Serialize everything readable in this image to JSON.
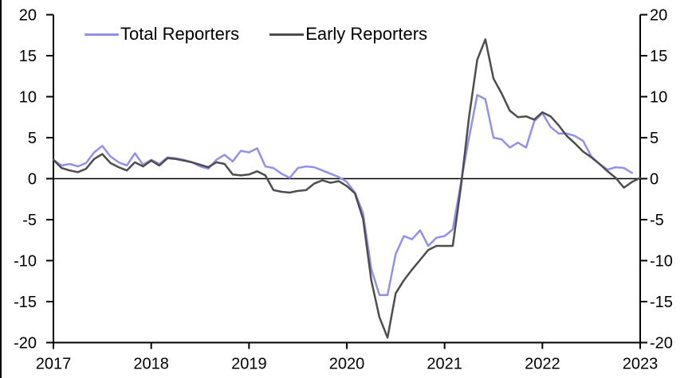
{
  "chart_data": {
    "type": "line",
    "title": "",
    "xlabel": "",
    "ylabel": "",
    "x_start_year": 2017,
    "points_per_year": 12,
    "x_tick_labels": [
      "2017",
      "2018",
      "2019",
      "2020",
      "2021",
      "2022",
      "2023"
    ],
    "y_ticks": [
      20,
      15,
      10,
      5,
      0,
      -5,
      -10,
      -15,
      -20
    ],
    "ylim": [
      -20,
      20
    ],
    "grid": false,
    "zero_line": true,
    "legend_position": "top",
    "axis_color": "#000000",
    "series": [
      {
        "name": "Total Reporters",
        "color": "#9191e9",
        "values": [
          2.3,
          1.6,
          1.8,
          1.5,
          1.9,
          3.2,
          4.0,
          2.7,
          2.0,
          1.6,
          3.1,
          1.7,
          2.3,
          1.8,
          2.6,
          2.5,
          2.3,
          2.0,
          1.5,
          1.2,
          2.3,
          2.9,
          2.1,
          3.4,
          3.2,
          3.7,
          1.5,
          1.3,
          0.6,
          0.1,
          1.3,
          1.5,
          1.4,
          1.0,
          0.6,
          0.2,
          -0.4,
          -1.7,
          -4.2,
          -11.0,
          -14.2,
          -14.2,
          -9.2,
          -7.0,
          -7.4,
          -6.3,
          -8.2,
          -7.2,
          -7.0,
          -6.2,
          -0.5,
          5.0,
          10.2,
          9.7,
          5.0,
          4.8,
          3.8,
          4.4,
          3.8,
          7.0,
          8.0,
          6.3,
          5.5,
          5.5,
          5.2,
          4.6,
          2.7,
          1.8,
          1.1,
          1.4,
          1.3,
          0.7,
          null
        ]
      },
      {
        "name": "Early Reporters",
        "color": "#4d4d4d",
        "values": [
          2.3,
          1.3,
          1.0,
          0.8,
          1.2,
          2.4,
          3.0,
          1.9,
          1.4,
          1.0,
          2.0,
          1.5,
          2.2,
          1.6,
          2.5,
          2.4,
          2.2,
          2.0,
          1.7,
          1.4,
          2.0,
          1.8,
          0.5,
          0.4,
          0.5,
          0.9,
          0.4,
          -1.4,
          -1.6,
          -1.7,
          -1.5,
          -1.4,
          -0.6,
          -0.2,
          -0.5,
          -0.3,
          -0.9,
          -1.8,
          -4.9,
          -12.4,
          -16.9,
          -19.4,
          -14.0,
          -12.4,
          -11.1,
          -9.9,
          -8.7,
          -8.2,
          -8.2,
          -8.2,
          -1.0,
          7.5,
          14.5,
          17.0,
          12.2,
          10.4,
          8.3,
          7.5,
          7.6,
          7.2,
          8.1,
          7.6,
          6.5,
          5.2,
          4.3,
          3.3,
          2.6,
          1.8,
          0.9,
          0.1,
          -1.1,
          -0.4,
          0.1
        ]
      }
    ]
  }
}
